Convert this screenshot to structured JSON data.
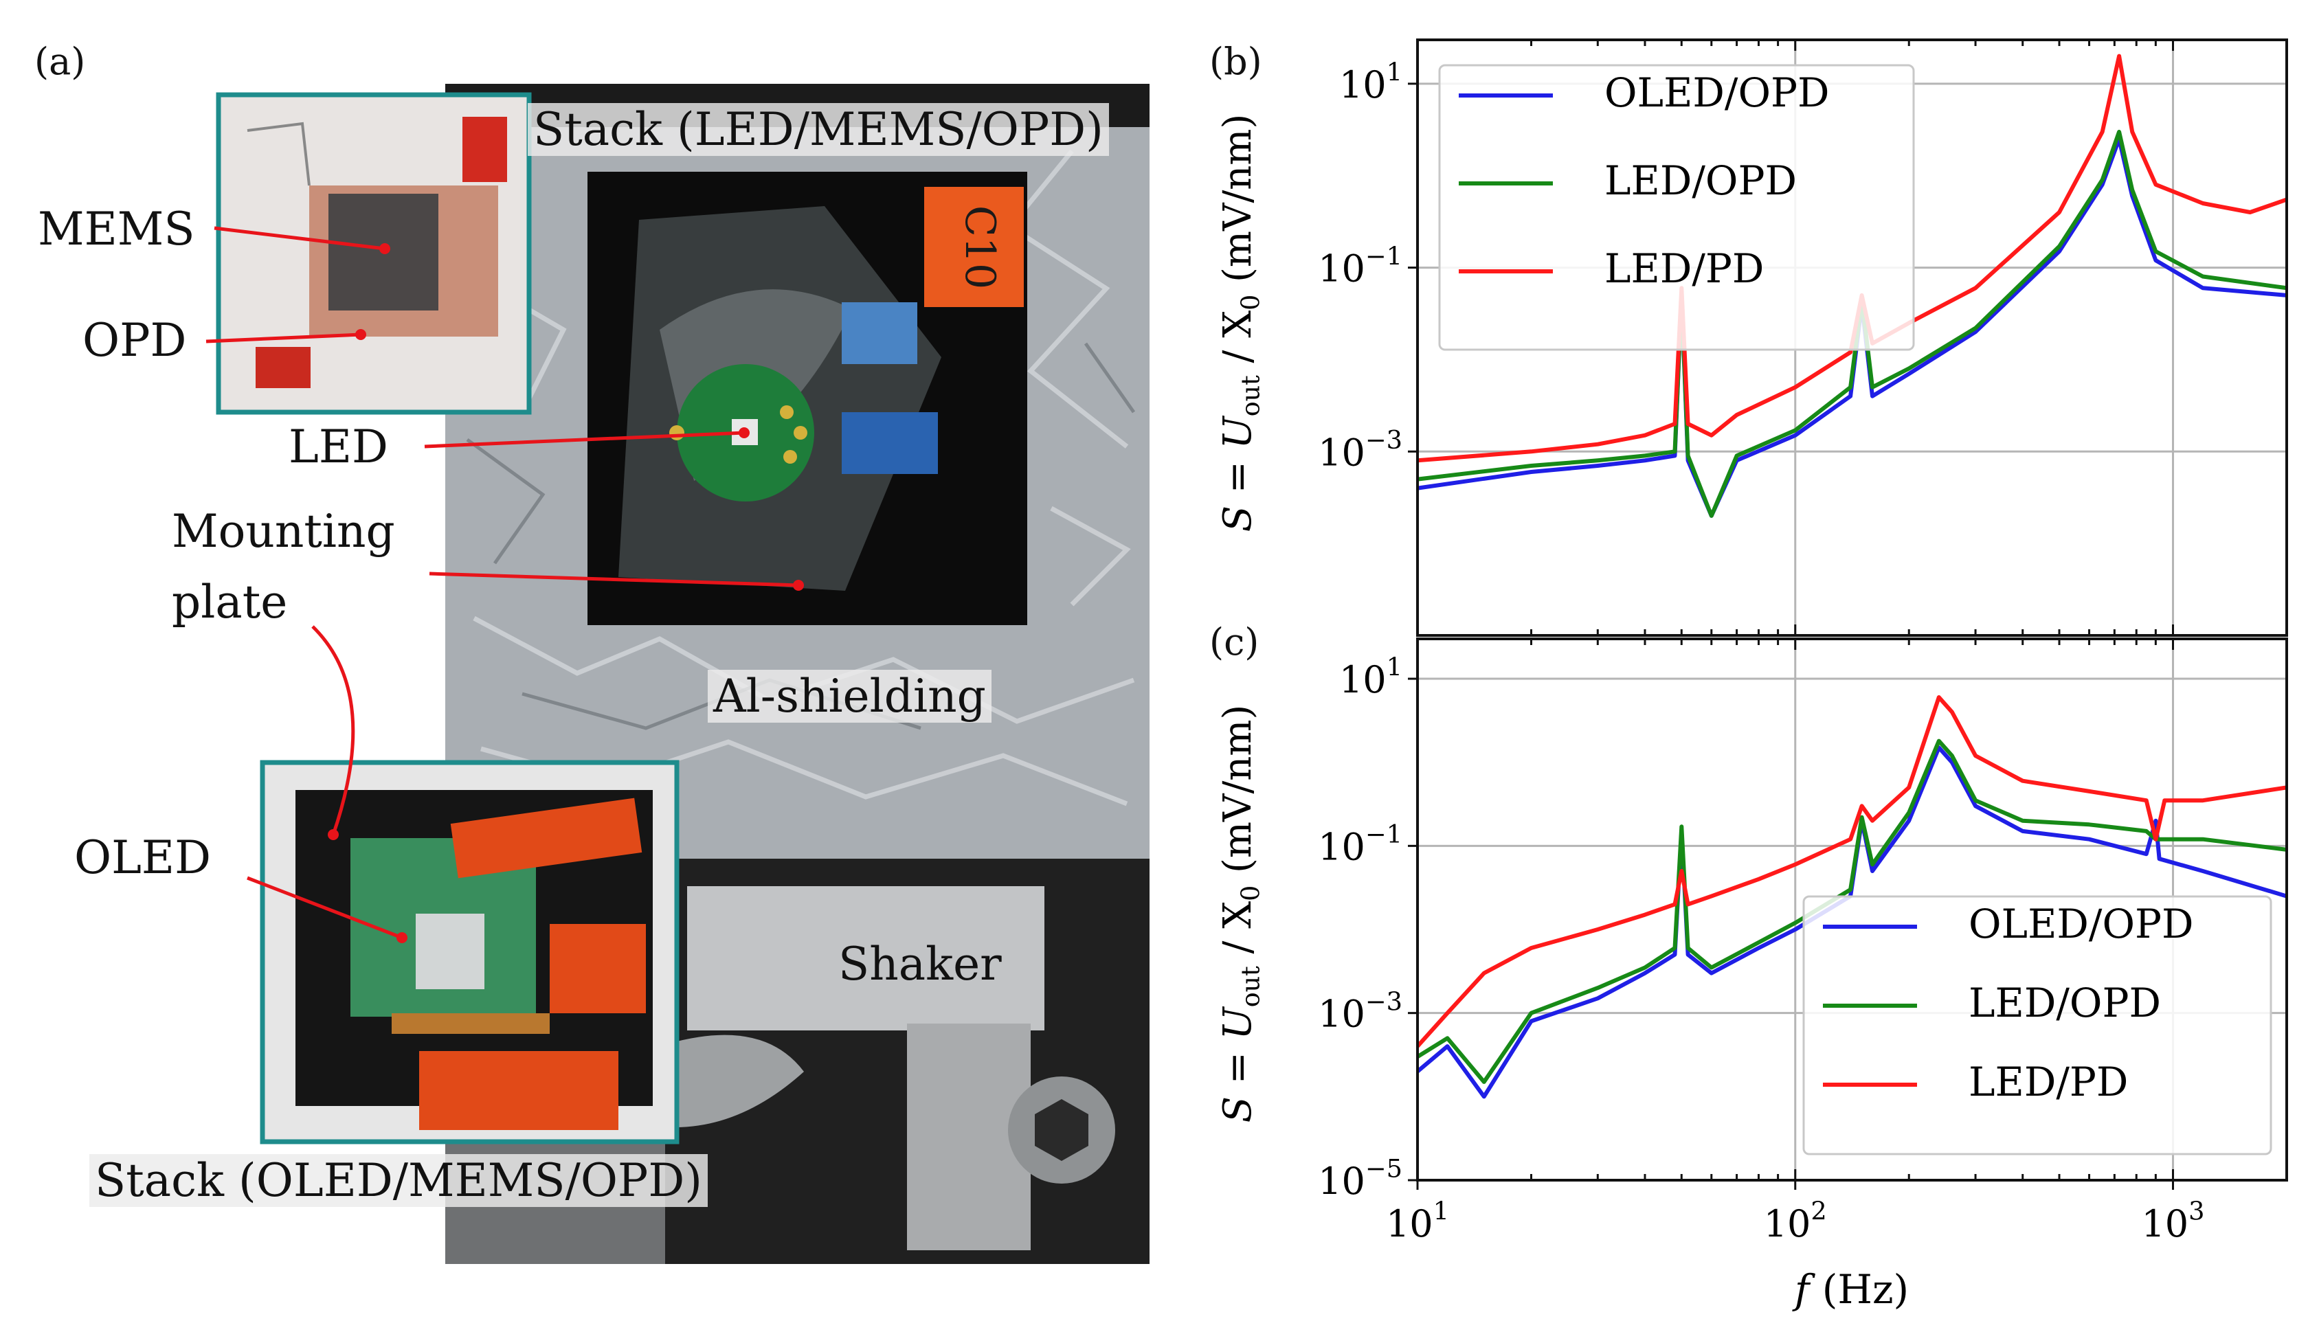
{
  "panel_a": {
    "label": "(a)",
    "labels": {
      "stack_top": "Stack (LED/MEMS/OPD)",
      "mems": "MEMS",
      "opd": "OPD",
      "led": "LED",
      "mounting_line1": "Mounting",
      "mounting_line2": "plate",
      "al_shielding": "Al-shielding",
      "oled": "OLED",
      "shaker": "Shaker",
      "stack_bottom": "Stack (OLED/MEMS/OPD)"
    },
    "handwriting": "C10"
  },
  "chart_data": [
    {
      "id": "b",
      "type": "line",
      "panel_label": "(b)",
      "xscale": "log",
      "yscale": "log",
      "xlim": [
        10,
        2000
      ],
      "ylim": [
        1e-05,
        30
      ],
      "xlabel": "",
      "ylabel": "S = U_out / X_0 (mV/nm)",
      "yticks": [
        {
          "base": "10",
          "exp": "1"
        },
        {
          "base": "10",
          "exp": "−1"
        },
        {
          "base": "10",
          "exp": "−3"
        }
      ],
      "xticks": [],
      "grid": true,
      "legend_position": "top-left",
      "series": [
        {
          "name": "OLED/OPD",
          "color": "#1f1fe6",
          "legend_label": "OLED/OPD",
          "points": [
            [
              10,
              0.0004
            ],
            [
              20,
              0.0006
            ],
            [
              30,
              0.0007
            ],
            [
              40,
              0.0008
            ],
            [
              48,
              0.0009
            ],
            [
              50,
              0.05
            ],
            [
              52,
              0.0008
            ],
            [
              60,
              0.0002
            ],
            [
              70,
              0.0008
            ],
            [
              100,
              0.0015
            ],
            [
              140,
              0.004
            ],
            [
              150,
              0.04
            ],
            [
              160,
              0.004
            ],
            [
              200,
              0.007
            ],
            [
              300,
              0.02
            ],
            [
              500,
              0.15
            ],
            [
              650,
              0.8
            ],
            [
              720,
              2.5
            ],
            [
              780,
              0.6
            ],
            [
              900,
              0.12
            ],
            [
              1200,
              0.06
            ],
            [
              2000,
              0.05
            ]
          ]
        },
        {
          "name": "LED/OPD",
          "color": "#178a17",
          "legend_label": "LED/OPD",
          "points": [
            [
              10,
              0.0005
            ],
            [
              20,
              0.0007
            ],
            [
              30,
              0.0008
            ],
            [
              40,
              0.0009
            ],
            [
              48,
              0.001
            ],
            [
              50,
              0.05
            ],
            [
              52,
              0.0009
            ],
            [
              60,
              0.0002
            ],
            [
              70,
              0.0009
            ],
            [
              100,
              0.0017
            ],
            [
              140,
              0.005
            ],
            [
              150,
              0.045
            ],
            [
              160,
              0.005
            ],
            [
              200,
              0.008
            ],
            [
              300,
              0.022
            ],
            [
              500,
              0.17
            ],
            [
              650,
              0.9
            ],
            [
              720,
              3.0
            ],
            [
              780,
              0.7
            ],
            [
              900,
              0.15
            ],
            [
              1200,
              0.08
            ],
            [
              2000,
              0.06
            ]
          ]
        },
        {
          "name": "LED/PD",
          "color": "#ff1a1a",
          "legend_label": "LED/PD",
          "points": [
            [
              10,
              0.0008
            ],
            [
              20,
              0.001
            ],
            [
              30,
              0.0012
            ],
            [
              40,
              0.0015
            ],
            [
              48,
              0.002
            ],
            [
              50,
              0.06
            ],
            [
              52,
              0.002
            ],
            [
              60,
              0.0015
            ],
            [
              70,
              0.0025
            ],
            [
              100,
              0.005
            ],
            [
              140,
              0.012
            ],
            [
              150,
              0.05
            ],
            [
              160,
              0.015
            ],
            [
              200,
              0.025
            ],
            [
              300,
              0.06
            ],
            [
              500,
              0.4
            ],
            [
              650,
              3.0
            ],
            [
              720,
              20
            ],
            [
              780,
              3.0
            ],
            [
              900,
              0.8
            ],
            [
              1200,
              0.5
            ],
            [
              1600,
              0.4
            ],
            [
              2000,
              0.55
            ]
          ]
        }
      ]
    },
    {
      "id": "c",
      "type": "line",
      "panel_label": "(c)",
      "xscale": "log",
      "yscale": "log",
      "xlim": [
        10,
        2000
      ],
      "ylim": [
        1e-05,
        30
      ],
      "xlabel": "f (Hz)",
      "ylabel": "S = U_out / X_0 (mV/nm)",
      "yticks": [
        {
          "base": "10",
          "exp": "1"
        },
        {
          "base": "10",
          "exp": "−1"
        },
        {
          "base": "10",
          "exp": "−3"
        },
        {
          "base": "10",
          "exp": "−5"
        }
      ],
      "xticks": [
        {
          "base": "10",
          "exp": "1"
        },
        {
          "base": "10",
          "exp": "2"
        },
        {
          "base": "10",
          "exp": "3"
        }
      ],
      "grid": true,
      "legend_position": "bottom-right",
      "series": [
        {
          "name": "OLED/OPD",
          "color": "#1f1fe6",
          "legend_label": "OLED/OPD",
          "points": [
            [
              10,
              0.0002
            ],
            [
              12,
              0.0004
            ],
            [
              15,
              0.0001
            ],
            [
              20,
              0.0008
            ],
            [
              30,
              0.0015
            ],
            [
              40,
              0.003
            ],
            [
              48,
              0.005
            ],
            [
              50,
              0.15
            ],
            [
              52,
              0.005
            ],
            [
              60,
              0.003
            ],
            [
              80,
              0.006
            ],
            [
              100,
              0.01
            ],
            [
              140,
              0.025
            ],
            [
              150,
              0.2
            ],
            [
              160,
              0.05
            ],
            [
              200,
              0.2
            ],
            [
              240,
              1.5
            ],
            [
              260,
              1.0
            ],
            [
              300,
              0.3
            ],
            [
              400,
              0.15
            ],
            [
              600,
              0.12
            ],
            [
              850,
              0.08
            ],
            [
              900,
              0.2
            ],
            [
              920,
              0.07
            ],
            [
              1200,
              0.05
            ],
            [
              2000,
              0.025
            ]
          ]
        },
        {
          "name": "LED/OPD",
          "color": "#178a17",
          "legend_label": "LED/OPD",
          "points": [
            [
              10,
              0.0003
            ],
            [
              12,
              0.0005
            ],
            [
              15,
              0.00015
            ],
            [
              20,
              0.001
            ],
            [
              30,
              0.002
            ],
            [
              40,
              0.0035
            ],
            [
              48,
              0.006
            ],
            [
              50,
              0.17
            ],
            [
              52,
              0.006
            ],
            [
              60,
              0.0035
            ],
            [
              80,
              0.007
            ],
            [
              100,
              0.012
            ],
            [
              140,
              0.03
            ],
            [
              150,
              0.22
            ],
            [
              160,
              0.06
            ],
            [
              200,
              0.25
            ],
            [
              240,
              1.8
            ],
            [
              260,
              1.2
            ],
            [
              300,
              0.35
            ],
            [
              400,
              0.2
            ],
            [
              600,
              0.18
            ],
            [
              850,
              0.15
            ],
            [
              900,
              0.12
            ],
            [
              1200,
              0.12
            ],
            [
              2000,
              0.09
            ]
          ]
        },
        {
          "name": "LED/PD",
          "color": "#ff1a1a",
          "legend_label": "LED/PD",
          "points": [
            [
              10,
              0.0004
            ],
            [
              12,
              0.001
            ],
            [
              15,
              0.003
            ],
            [
              20,
              0.006
            ],
            [
              30,
              0.01
            ],
            [
              40,
              0.015
            ],
            [
              48,
              0.02
            ],
            [
              50,
              0.05
            ],
            [
              52,
              0.02
            ],
            [
              60,
              0.025
            ],
            [
              80,
              0.04
            ],
            [
              100,
              0.06
            ],
            [
              140,
              0.12
            ],
            [
              150,
              0.3
            ],
            [
              160,
              0.2
            ],
            [
              200,
              0.5
            ],
            [
              240,
              6.0
            ],
            [
              260,
              4.0
            ],
            [
              300,
              1.2
            ],
            [
              400,
              0.6
            ],
            [
              600,
              0.45
            ],
            [
              850,
              0.35
            ],
            [
              900,
              0.12
            ],
            [
              950,
              0.35
            ],
            [
              1200,
              0.35
            ],
            [
              2000,
              0.5
            ]
          ]
        }
      ]
    }
  ]
}
